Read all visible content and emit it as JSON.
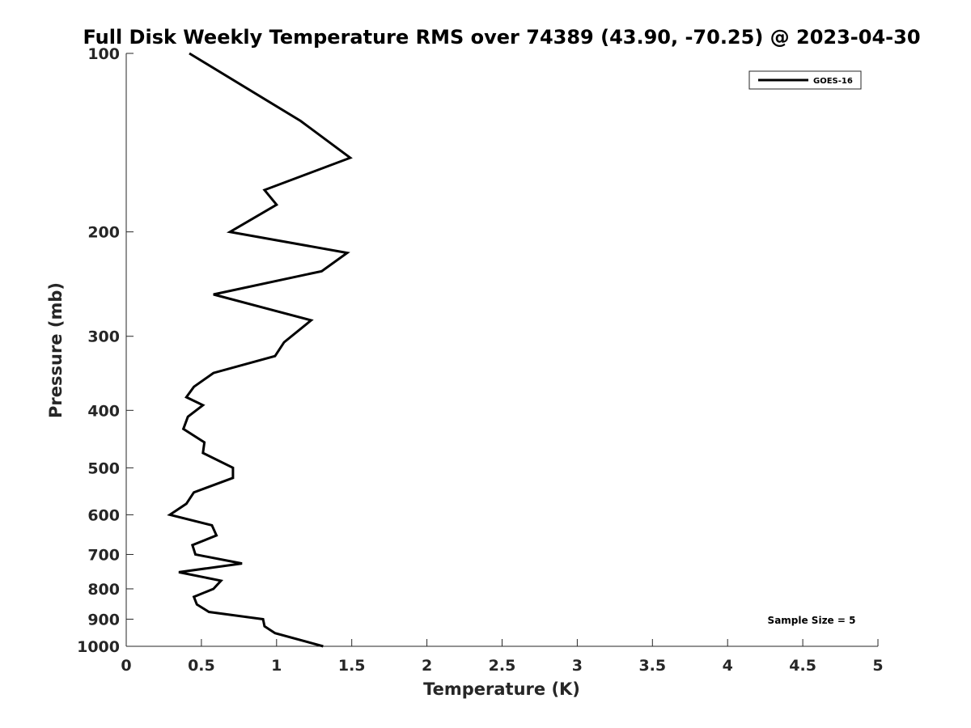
{
  "chart_data": {
    "type": "line",
    "title": "Full Disk Weekly Temperature RMS over 74389 (43.90, -70.25) @ 2023-04-30",
    "xlabel": "Temperature (K)",
    "ylabel": "Pressure (mb)",
    "xlim": [
      0,
      5
    ],
    "ylim": [
      100,
      1000
    ],
    "y_scale": "log",
    "y_reversed": true,
    "x_ticks": [
      "0",
      "0.5",
      "1",
      "1.5",
      "2",
      "2.5",
      "3",
      "3.5",
      "4",
      "4.5",
      "5"
    ],
    "y_ticks": [
      "100",
      "200",
      "300",
      "400",
      "500",
      "600",
      "700",
      "800",
      "900",
      "1000"
    ],
    "grid": false,
    "legend_position": "top-right",
    "annotation": "Sample Size = 5",
    "series": [
      {
        "name": "GOES-16",
        "color": "#000000",
        "x": [
          0.42,
          1.16,
          1.49,
          0.92,
          1.0,
          0.69,
          1.47,
          1.3,
          0.58,
          1.23,
          1.05,
          0.99,
          0.58,
          0.45,
          0.4,
          0.51,
          0.41,
          0.38,
          0.52,
          0.51,
          0.71,
          0.71,
          0.45,
          0.4,
          0.29,
          0.57,
          0.6,
          0.44,
          0.46,
          0.77,
          0.35,
          0.63,
          0.58,
          0.45,
          0.47,
          0.55,
          0.91,
          0.92,
          0.99,
          1.31
        ],
        "y": [
          100,
          130,
          150,
          170,
          180,
          200,
          217,
          233,
          255,
          282,
          307,
          324,
          346,
          365,
          380,
          392,
          410,
          430,
          453,
          472,
          500,
          520,
          550,
          575,
          600,
          625,
          650,
          675,
          700,
          725,
          750,
          775,
          800,
          825,
          850,
          875,
          900,
          925,
          950,
          1000
        ]
      }
    ]
  }
}
